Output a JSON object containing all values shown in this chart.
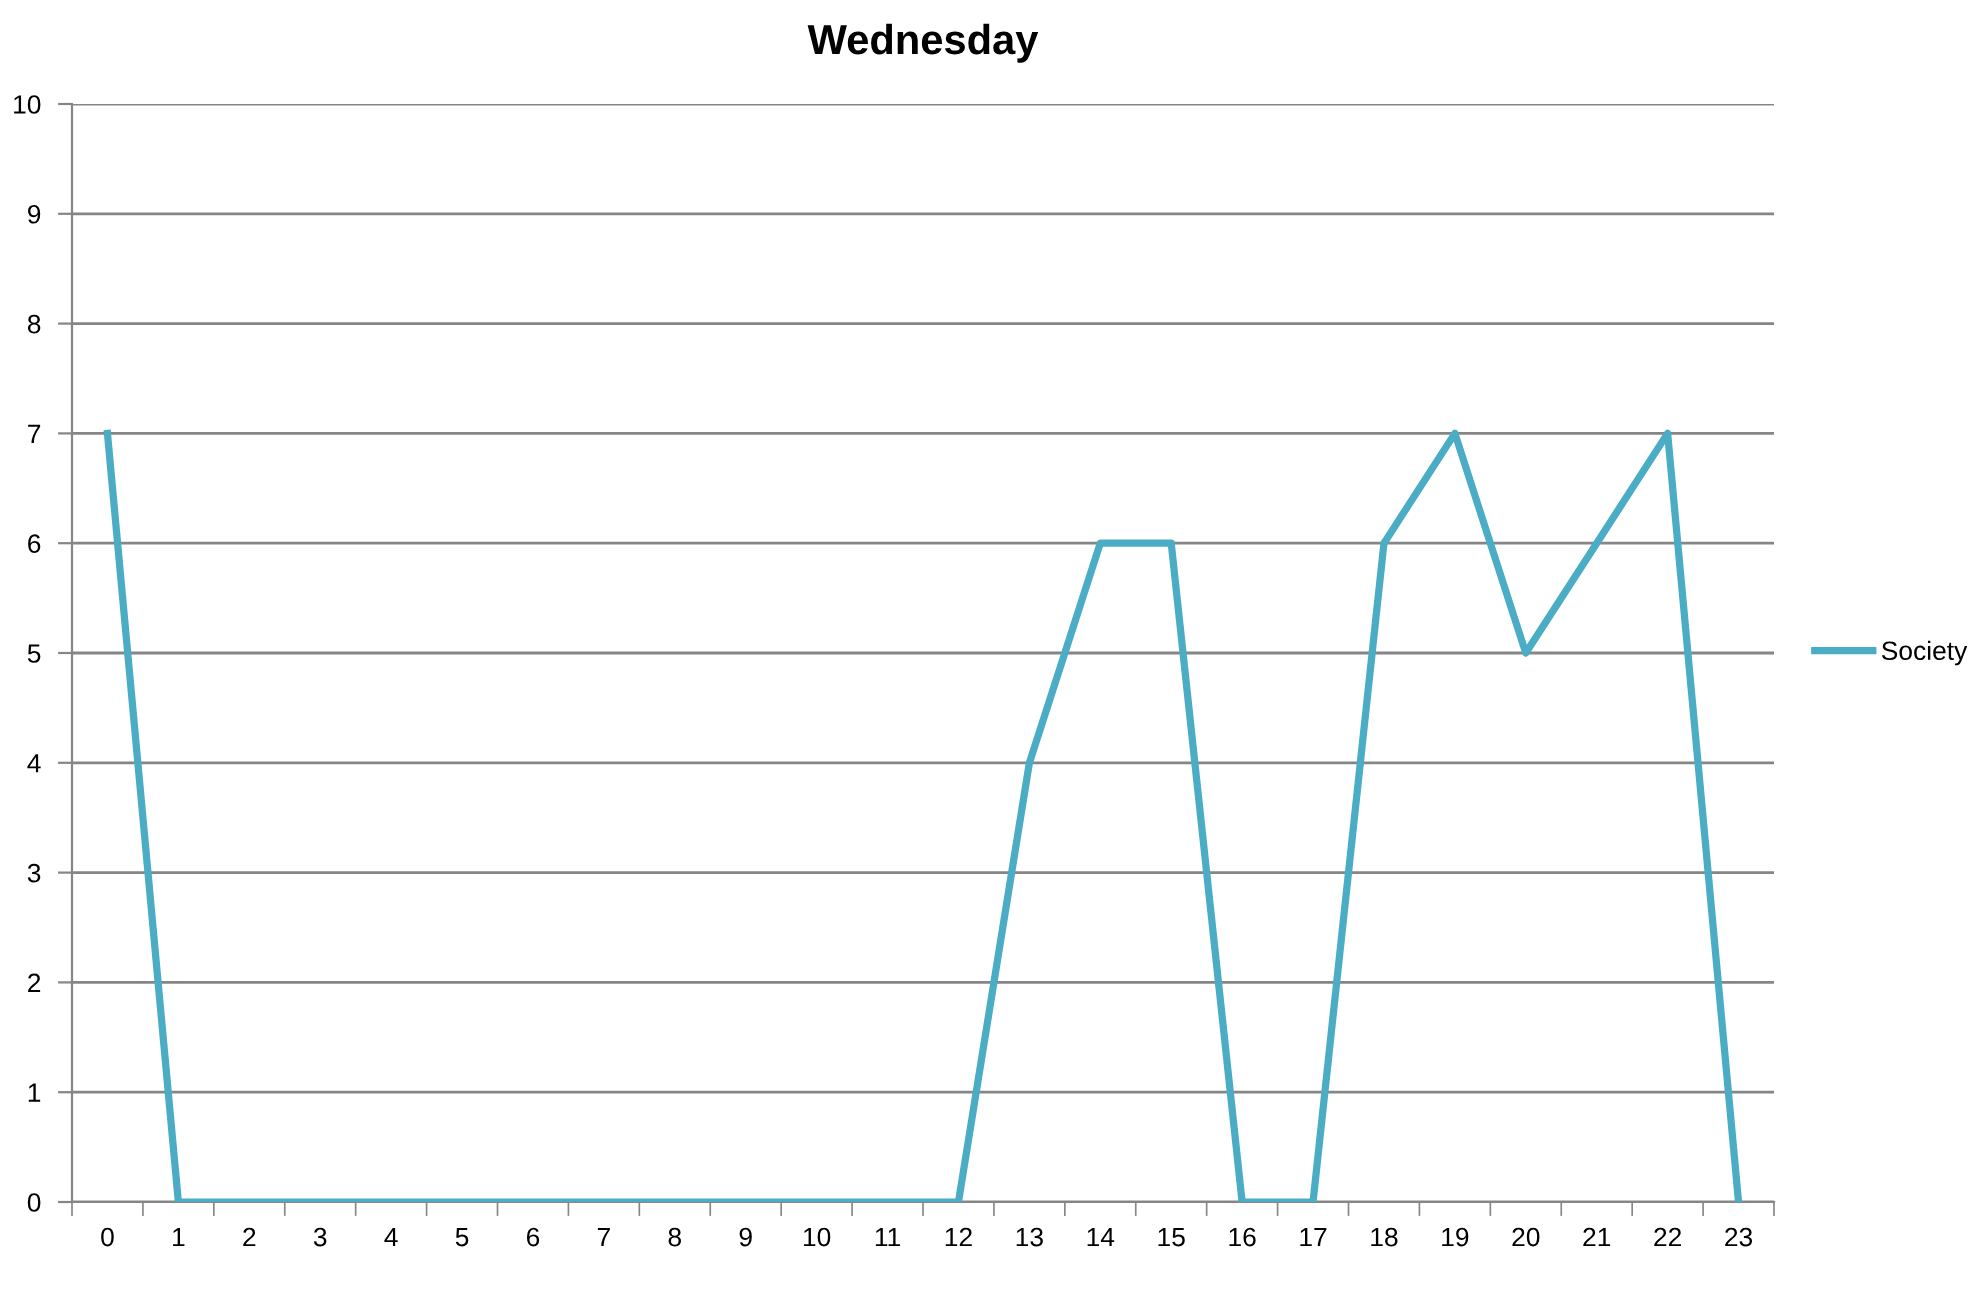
{
  "chart_data": {
    "type": "line",
    "title": "Wednesday",
    "categories": [
      "0",
      "1",
      "2",
      "3",
      "4",
      "5",
      "6",
      "7",
      "8",
      "9",
      "10",
      "11",
      "12",
      "13",
      "14",
      "15",
      "16",
      "17",
      "18",
      "19",
      "20",
      "21",
      "22",
      "23"
    ],
    "series": [
      {
        "name": "Society",
        "color": "#4bacc6",
        "values": [
          7,
          0,
          0,
          0,
          0,
          0,
          0,
          0,
          0,
          0,
          0,
          0,
          0,
          4,
          6,
          6,
          0,
          0,
          6,
          7,
          5,
          6,
          7,
          0
        ]
      }
    ],
    "ylim": [
      0,
      10
    ],
    "yticks": [
      0,
      1,
      2,
      3,
      4,
      5,
      6,
      7,
      8,
      9,
      10
    ],
    "grid": "y",
    "legend": "right",
    "marker": "none",
    "line_style": "solid"
  }
}
